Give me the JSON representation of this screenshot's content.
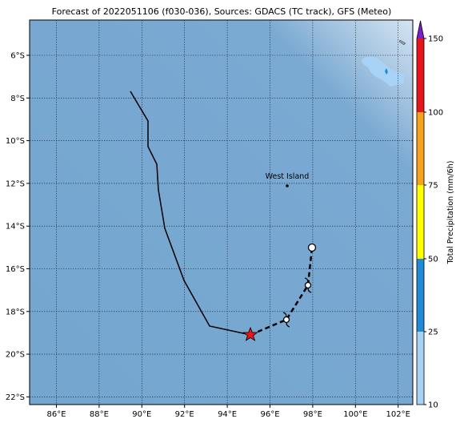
{
  "title": "Forecast of 2022051106 (f030-036), Sources: GDACS (TC track), GFS (Meteo)",
  "lon_labels": [
    "86°E",
    "88°E",
    "90°E",
    "92°E",
    "94°E",
    "96°E",
    "98°E",
    "100°E",
    "102°E"
  ],
  "lat_labels": [
    "6°S",
    "8°S",
    "10°S",
    "12°S",
    "14°S",
    "16°S",
    "18°S",
    "20°S",
    "22°S"
  ],
  "place": "West Island",
  "colorbar": {
    "label": "Total Precipitation (mm/6h)",
    "ticks": [
      "10",
      "25",
      "50",
      "75",
      "100",
      "150"
    ]
  }
}
